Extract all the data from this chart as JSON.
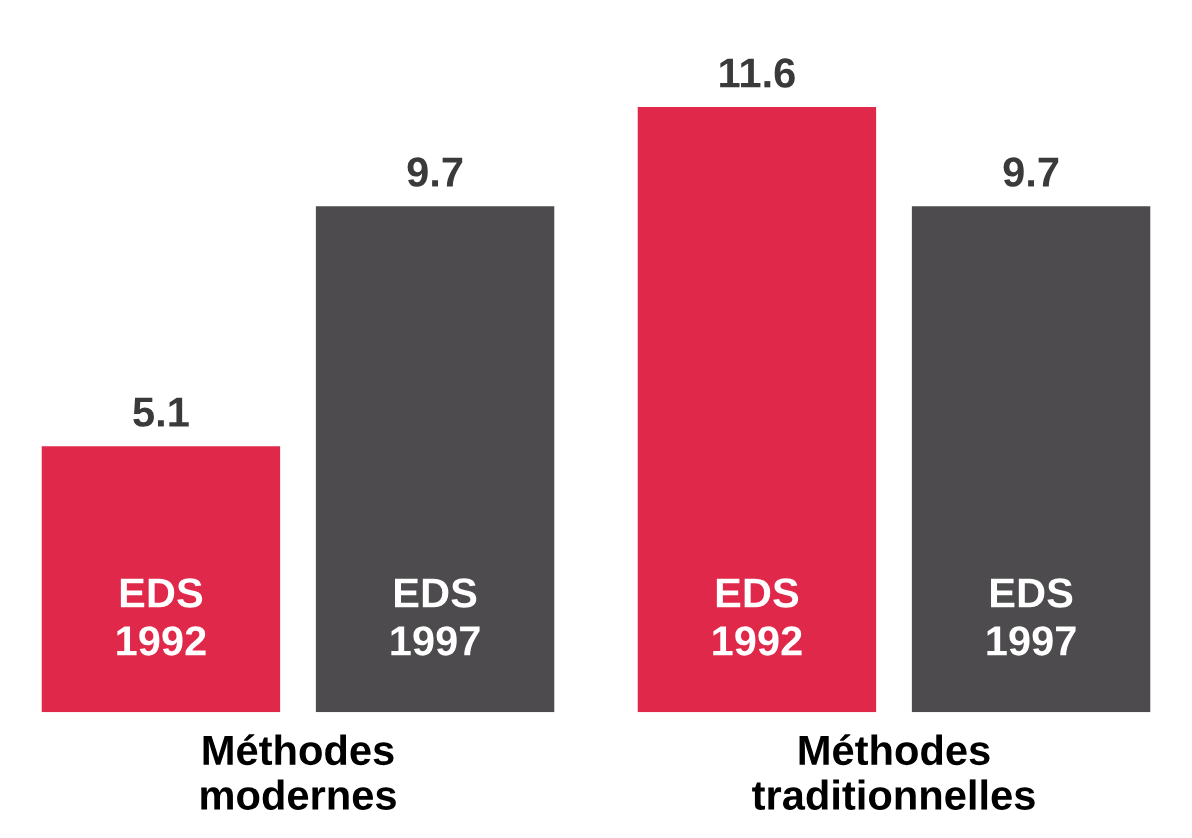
{
  "chart_data": {
    "type": "bar",
    "categories": [
      "Méthodes modernes",
      "Méthodes traditionnelles"
    ],
    "series": [
      {
        "name": "EDS 1992",
        "color": "#e0284a",
        "values": [
          5.1,
          11.6
        ]
      },
      {
        "name": "EDS 1997",
        "color": "#4d4b4d",
        "values": [
          9.7,
          9.7
        ]
      }
    ],
    "data_labels": true,
    "grid": false,
    "legend": false
  }
}
